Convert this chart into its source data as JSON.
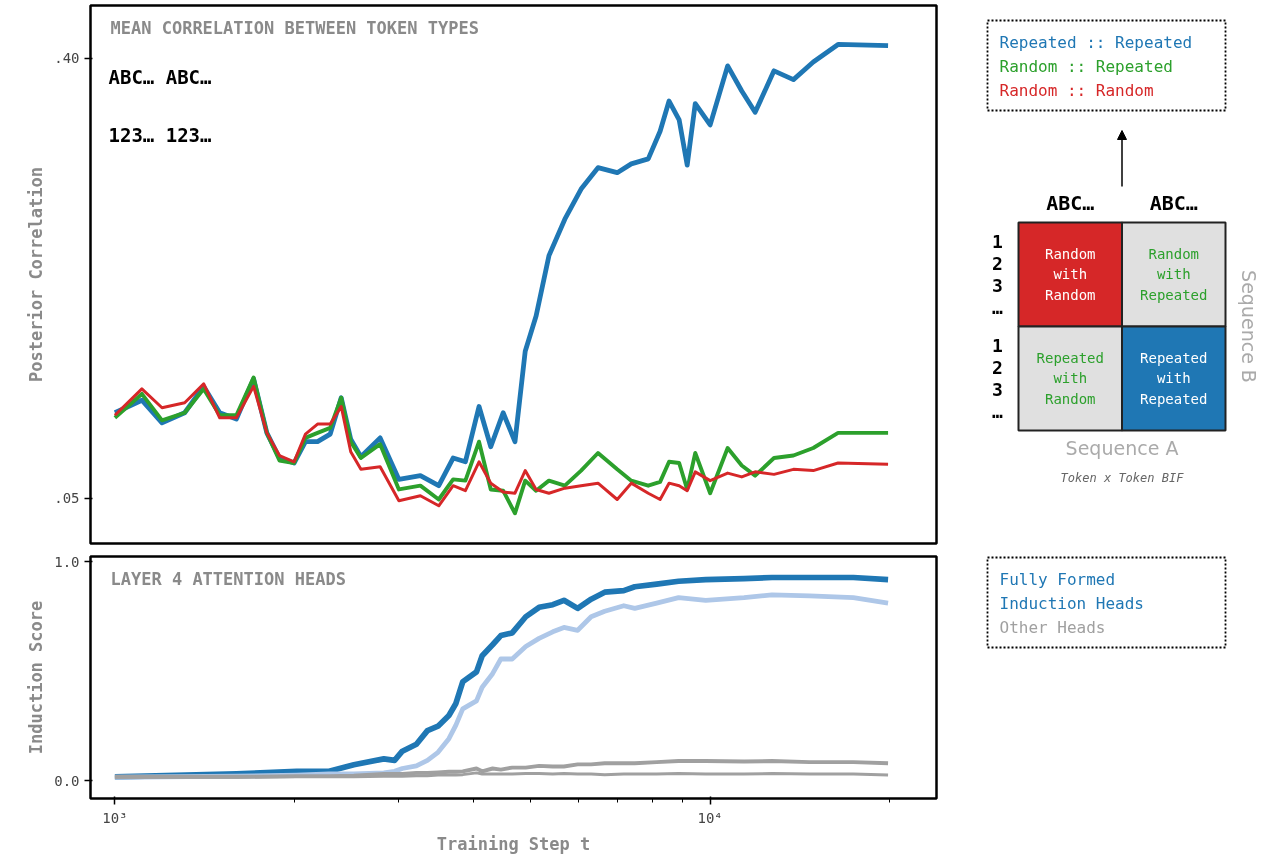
{
  "chart_data": [
    {
      "type": "line",
      "title": "MEAN CORRELATION BETWEEN TOKEN TYPES",
      "ylabel": "Posterior Correlation",
      "annotations": [
        "ABC…  ABC…",
        "123…  123…"
      ],
      "log": "x",
      "tick_labels": "y",
      "legend": "right",
      "xlim": [
        910,
        24000
      ],
      "ylim": [
        0.014,
        0.442
      ],
      "yticks": [
        {
          "value": 0.05,
          "label": ".05"
        },
        {
          "value": 0.4,
          "label": ".40"
        }
      ],
      "x": [
        1000,
        1110,
        1200,
        1310,
        1410,
        1500,
        1600,
        1710,
        1800,
        1890,
        2000,
        2090,
        2190,
        2300,
        2400,
        2490,
        2590,
        2790,
        3000,
        3260,
        3500,
        3700,
        3880,
        4090,
        4280,
        4490,
        4700,
        4890,
        5100,
        5360,
        5700,
        6070,
        6480,
        6980,
        7370,
        7870,
        8240,
        8530,
        8870,
        9150,
        9440,
        10000,
        10700,
        11300,
        11900,
        12800,
        13800,
        14900,
        16400,
        19900
      ],
      "series": [
        {
          "name": "Repeated :: Repeated",
          "color": "#1f77b4",
          "values": [
            0.118,
            0.128,
            0.11,
            0.118,
            0.139,
            0.118,
            0.113,
            0.145,
            0.102,
            0.082,
            0.078,
            0.095,
            0.095,
            0.101,
            0.13,
            0.097,
            0.083,
            0.098,
            0.065,
            0.068,
            0.06,
            0.082,
            0.079,
            0.123,
            0.091,
            0.118,
            0.095,
            0.167,
            0.195,
            0.243,
            0.272,
            0.296,
            0.313,
            0.309,
            0.316,
            0.32,
            0.342,
            0.366,
            0.351,
            0.315,
            0.364,
            0.347,
            0.394,
            0.374,
            0.357,
            0.39,
            0.383,
            0.397,
            0.411,
            0.41
          ]
        },
        {
          "name": "Random :: Repeated",
          "color": "#2ca02c",
          "values": [
            0.114,
            0.133,
            0.112,
            0.118,
            0.137,
            0.116,
            0.116,
            0.146,
            0.102,
            0.08,
            0.078,
            0.098,
            0.102,
            0.106,
            0.13,
            0.095,
            0.082,
            0.093,
            0.057,
            0.06,
            0.049,
            0.065,
            0.064,
            0.095,
            0.057,
            0.056,
            0.038,
            0.064,
            0.056,
            0.064,
            0.06,
            0.072,
            0.086,
            0.073,
            0.064,
            0.06,
            0.063,
            0.079,
            0.078,
            0.057,
            0.086,
            0.054,
            0.09,
            0.076,
            0.068,
            0.082,
            0.084,
            0.09,
            0.102,
            0.102
          ]
        },
        {
          "name": "Random :: Random",
          "color": "#d62728",
          "values": [
            0.116,
            0.137,
            0.122,
            0.126,
            0.141,
            0.114,
            0.114,
            0.139,
            0.102,
            0.084,
            0.079,
            0.101,
            0.109,
            0.109,
            0.123,
            0.087,
            0.073,
            0.075,
            0.048,
            0.052,
            0.044,
            0.06,
            0.056,
            0.079,
            0.062,
            0.055,
            0.054,
            0.072,
            0.057,
            0.054,
            0.058,
            0.06,
            0.062,
            0.049,
            0.062,
            0.054,
            0.049,
            0.062,
            0.06,
            0.056,
            0.071,
            0.064,
            0.07,
            0.067,
            0.071,
            0.069,
            0.073,
            0.072,
            0.078,
            0.077
          ]
        }
      ]
    },
    {
      "type": "line",
      "title": "LAYER 4 ATTENTION HEADS",
      "xlabel": "Training Step t",
      "ylabel": "Induction Score",
      "log": "x",
      "legend": "right",
      "xlim": [
        910,
        24000
      ],
      "ylim": [
        -0.082,
        1.023
      ],
      "xticks": [
        {
          "value": 1000,
          "label": "10³"
        },
        {
          "value": 2000,
          "label": null
        },
        {
          "value": 3000,
          "label": null
        },
        {
          "value": 4000,
          "label": null
        },
        {
          "value": 5000,
          "label": null
        },
        {
          "value": 6000,
          "label": null
        },
        {
          "value": 7000,
          "label": null
        },
        {
          "value": 8000,
          "label": null
        },
        {
          "value": 9000,
          "label": null
        },
        {
          "value": 10000,
          "label": "10⁴"
        },
        {
          "value": 20000,
          "label": null
        }
      ],
      "yticks": [
        {
          "value": 0,
          "label": "0.0"
        },
        {
          "value": 1,
          "label": "1.0"
        }
      ],
      "x": [
        1000,
        1600,
        2020,
        2290,
        2520,
        2830,
        2950,
        3040,
        3210,
        3350,
        3490,
        3640,
        3740,
        3840,
        4050,
        4140,
        4310,
        4450,
        4650,
        4900,
        5160,
        5440,
        5680,
        5990,
        6310,
        6650,
        7160,
        7470,
        8130,
        8850,
        9830,
        11400,
        12700,
        14700,
        17400,
        19900
      ],
      "series": [
        {
          "name": "Fully Formed Induction Heads",
          "color": "#1f77b4",
          "values": [
            0.017,
            0.03,
            0.042,
            0.042,
            0.072,
            0.099,
            0.092,
            0.134,
            0.166,
            0.228,
            0.248,
            0.297,
            0.352,
            0.451,
            0.496,
            0.57,
            0.62,
            0.662,
            0.674,
            0.748,
            0.791,
            0.803,
            0.823,
            0.786,
            0.828,
            0.86,
            0.867,
            0.885,
            0.897,
            0.91,
            0.917,
            0.922,
            0.927,
            0.927,
            0.927,
            0.917
          ]
        },
        {
          "color": "#aec7e8",
          "values": [
            0.015,
            0.02,
            0.025,
            0.03,
            0.03,
            0.035,
            0.042,
            0.055,
            0.067,
            0.092,
            0.129,
            0.191,
            0.253,
            0.327,
            0.364,
            0.426,
            0.488,
            0.555,
            0.555,
            0.612,
            0.649,
            0.679,
            0.699,
            0.686,
            0.748,
            0.773,
            0.798,
            0.786,
            0.81,
            0.835,
            0.823,
            0.835,
            0.848,
            0.843,
            0.835,
            0.81
          ]
        },
        {
          "name": "Other Heads",
          "color": "#a0a0a0",
          "values": [
            0.017,
            0.017,
            0.02,
            0.02,
            0.022,
            0.03,
            0.03,
            0.03,
            0.035,
            0.035,
            0.037,
            0.04,
            0.04,
            0.042,
            0.055,
            0.042,
            0.055,
            0.05,
            0.059,
            0.059,
            0.067,
            0.064,
            0.064,
            0.074,
            0.074,
            0.079,
            0.079,
            0.079,
            0.084,
            0.089,
            0.089,
            0.087,
            0.089,
            0.084,
            0.084,
            0.079
          ]
        },
        {
          "color": "#a0a0a0",
          "values": [
            0.015,
            0.015,
            0.017,
            0.017,
            0.017,
            0.02,
            0.02,
            0.02,
            0.022,
            0.022,
            0.025,
            0.025,
            0.025,
            0.027,
            0.035,
            0.03,
            0.03,
            0.03,
            0.03,
            0.032,
            0.032,
            0.03,
            0.032,
            0.03,
            0.03,
            0.027,
            0.03,
            0.03,
            0.03,
            0.032,
            0.03,
            0.03,
            0.032,
            0.03,
            0.03,
            0.025
          ]
        }
      ]
    },
    {
      "type": "other",
      "xlabel": "Sequence A",
      "ylabel": "Sequence B",
      "annotations": [
        "ABC…",
        "ABC…",
        "123…",
        "123…",
        "Token x Token BIF"
      ],
      "cell_labels": [
        [
          "Random with Random",
          "Random with Repeated"
        ],
        [
          "Repeated with Random",
          "Repeated with Repeated"
        ]
      ],
      "colors": [
        "#d62728",
        "#e0e0e0",
        "#e0e0e0",
        "#1f77b4"
      ]
    }
  ]
}
